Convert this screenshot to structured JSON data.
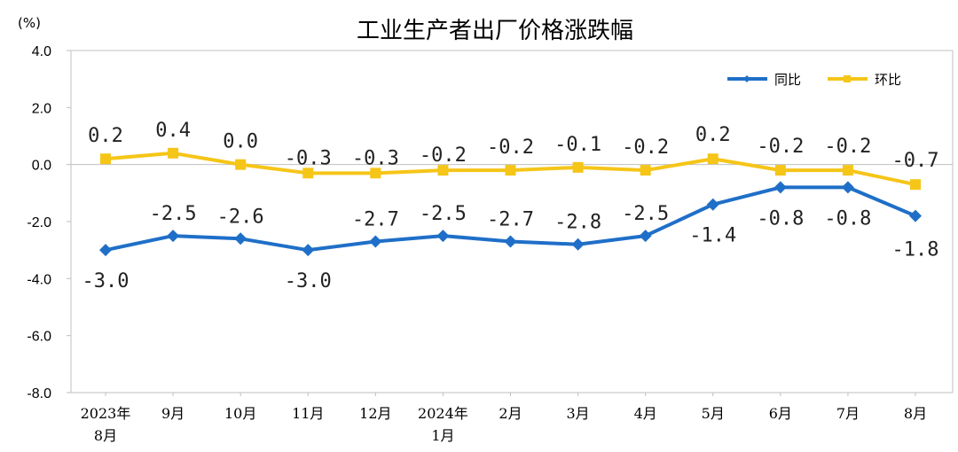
{
  "chart_data": {
    "type": "line",
    "title": "工业生产者出厂价格涨跌幅",
    "unit": "(%)",
    "ylim": [
      -8,
      4
    ],
    "yticks": [
      4,
      2,
      0,
      -2,
      -4,
      -6,
      -8
    ],
    "ytick_labels": [
      "4.0",
      "2.0",
      "0.0",
      "-2.0",
      "-4.0",
      "-6.0",
      "-8.0"
    ],
    "categories": [
      [
        "2023年",
        "8月"
      ],
      [
        "9月"
      ],
      [
        "10月"
      ],
      [
        "11月"
      ],
      [
        "12月"
      ],
      [
        "2024年",
        "1月"
      ],
      [
        "2月"
      ],
      [
        "3月"
      ],
      [
        "4月"
      ],
      [
        "5月"
      ],
      [
        "6月"
      ],
      [
        "7月"
      ],
      [
        "8月"
      ]
    ],
    "legend_position": "top-right",
    "series": [
      {
        "name": "同比",
        "color": "#1f6fc8",
        "marker": "diamond",
        "values": [
          -3.0,
          -2.5,
          -2.6,
          -3.0,
          -2.7,
          -2.5,
          -2.7,
          -2.8,
          -2.5,
          -1.4,
          -0.8,
          -0.8,
          -1.8
        ],
        "labels": [
          "-3.0",
          "-2.5",
          "-2.6",
          "-3.0",
          "-2.7",
          "-2.5",
          "-2.7",
          "-2.8",
          "-2.5",
          "-1.4",
          "-0.8",
          "-0.8",
          "-1.8"
        ]
      },
      {
        "name": "环比",
        "color": "#f5c518",
        "marker": "square",
        "values": [
          0.2,
          0.4,
          0.0,
          -0.3,
          -0.3,
          -0.2,
          -0.2,
          -0.1,
          -0.2,
          0.2,
          -0.2,
          -0.2,
          -0.7
        ],
        "labels": [
          "0.2",
          "0.4",
          "0.0",
          "-0.3",
          "-0.3",
          "-0.2",
          "-0.2",
          "-0.1",
          "-0.2",
          "0.2",
          "-0.2",
          "-0.2",
          "-0.7"
        ]
      }
    ]
  }
}
